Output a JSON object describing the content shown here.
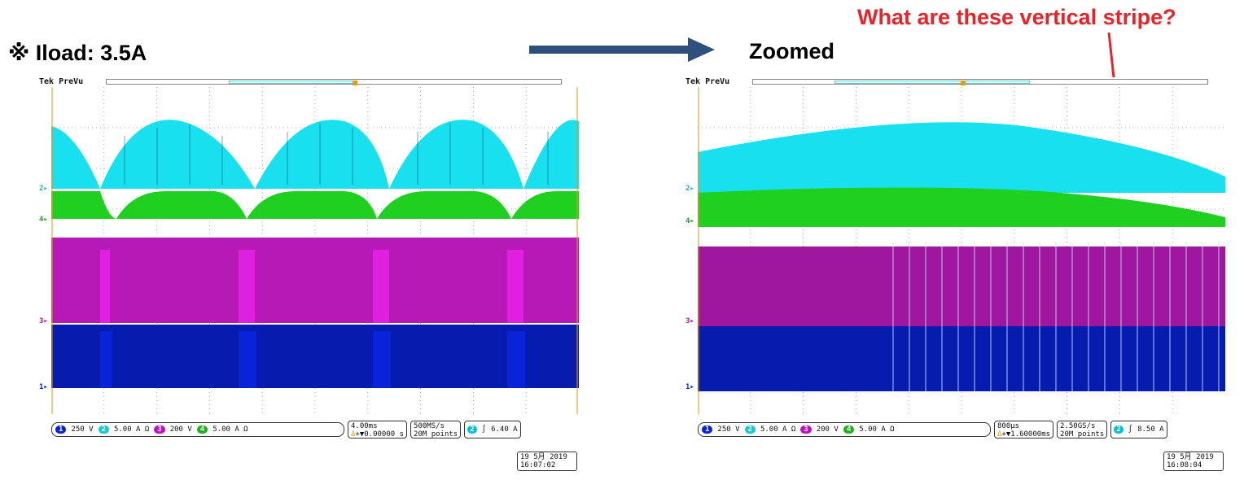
{
  "slide": {
    "title_left": "※ Iload: 3.5A",
    "title_zoom": "Zoomed",
    "question": "What are these vertical stripe?"
  },
  "colors": {
    "ch1": "#0a23d8",
    "ch2": "#18e0ee",
    "ch3": "#e020e0",
    "ch4": "#20d020",
    "trigger": "#e79b1b",
    "annotation": "#e8232a",
    "arrow": "#2f4f7f"
  },
  "icons": {
    "flow_arrow": "right-arrow-icon",
    "annotation_arrow": "red-arrow-icon"
  },
  "scopes": {
    "left": {
      "brand": "Tek PreVu",
      "channels": [
        {
          "badge": "1",
          "scale": "250 V"
        },
        {
          "badge": "2",
          "scale": "5.00 A Ω"
        },
        {
          "badge": "3",
          "scale": "200 V"
        },
        {
          "badge": "4",
          "scale": "5.00 A Ω"
        }
      ],
      "timebase": "4.00ms",
      "delay": "+▼0.00000 s",
      "delay_prefix": "Δ",
      "sample_rate": "500MS/s",
      "record_length": "20M points",
      "trigger_channel": "2",
      "trigger_slope": "∫",
      "trigger_level": "6.40 A",
      "date": "19 5月  2019",
      "time": "16:07:02"
    },
    "right": {
      "brand": "Tek PreVu",
      "channels": [
        {
          "badge": "1",
          "scale": "250 V"
        },
        {
          "badge": "2",
          "scale": "5.00 A Ω"
        },
        {
          "badge": "3",
          "scale": "200 V"
        },
        {
          "badge": "4",
          "scale": "5.00 A Ω"
        }
      ],
      "timebase": "800µs",
      "delay": "+▼1.60000ms",
      "delay_prefix": "Δ",
      "sample_rate": "2.50GS/s",
      "record_length": "20M points",
      "trigger_channel": "2",
      "trigger_slope": "∫",
      "trigger_level": "8.50 A",
      "date": "19 5月  2019",
      "time": "16:08:04"
    }
  }
}
